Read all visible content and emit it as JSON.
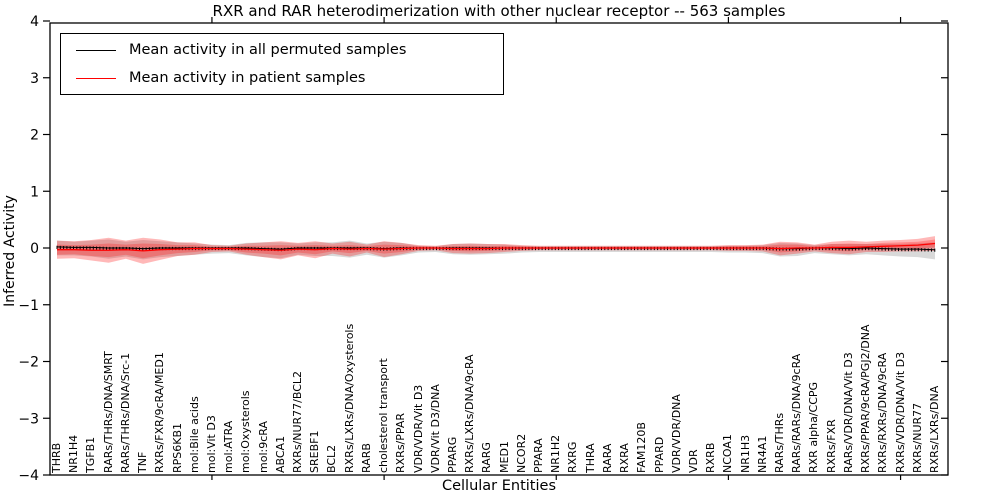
{
  "title": "RXR and RAR heterodimerization with other nuclear receptor -- 563 samples",
  "legend": [
    {
      "label": "Mean activity in all permuted samples",
      "color": "#000000"
    },
    {
      "label": "Mean activity in patient samples",
      "color": "#ff0000"
    }
  ],
  "chart_data": {
    "type": "line",
    "title": "RXR and RAR heterodimerization with other nuclear receptor -- 563 samples",
    "xlabel": "Cellular Entities",
    "ylabel": "Inferred Activity",
    "ylim": [
      -4,
      4
    ],
    "yticks": [
      -4,
      -3,
      -2,
      -1,
      0,
      1,
      2,
      3,
      4
    ],
    "xticks": [
      10,
      20,
      30,
      40,
      50
    ],
    "grid": false,
    "legend_position": "upper left",
    "categories": [
      "THRB",
      "NR1H4",
      "TGFB1",
      "RARs/THRs/DNA/SMRT",
      "RARs/THRs/DNA/Src-1",
      "TNF",
      "RXRs/FXR/9cRA/MED1",
      "RPS6KB1",
      "mol:Bile acids",
      "mol:Vit D3",
      "mol:ATRA",
      "mol:Oxysterols",
      "mol:9cRA",
      "ABCA1",
      "RXRs/NUR77/BCL2",
      "SREBF1",
      "BCL2",
      "RXRs/LXRs/DNA/Oxysterols",
      "RARB",
      "cholesterol transport",
      "RXRs/PPAR",
      "VDR/VDR/Vit D3",
      "VDR/Vit D3/DNA",
      "PPARG",
      "RXRs/LXRs/DNA/9cRA",
      "RARG",
      "MED1",
      "NCOR2",
      "PPARA",
      "NR1H2",
      "RXRG",
      "THRA",
      "RARA",
      "RXRA",
      "FAM120B",
      "PPARD",
      "VDR/VDR/DNA",
      "VDR",
      "RXRB",
      "NCOA1",
      "NR1H3",
      "NR4A1",
      "RARs/THRs",
      "RARs/RARs/DNA/9cRA",
      "RXR alpha/CCPG",
      "RXRs/FXR",
      "RARs/VDR/DNA/Vit D3",
      "RXRs/PPAR/9cRA/PGJ2/DNA",
      "RXRs/RXRs/DNA/9cRA",
      "RXRs/VDR/DNA/Vit D3",
      "RXRs/NUR77",
      "RXRs/LXRs/DNA"
    ],
    "series": [
      {
        "name": "Mean activity in all permuted samples",
        "color": "#000000",
        "values": [
          0.02,
          0.01,
          0.01,
          0.0,
          0.0,
          -0.01,
          0.0,
          0.0,
          0.0,
          0.0,
          0.0,
          0.0,
          -0.01,
          -0.02,
          0.0,
          0.0,
          0.0,
          0.0,
          0.0,
          -0.01,
          0.0,
          0.0,
          0.0,
          0.0,
          0.0,
          0.0,
          0.0,
          0.0,
          0.0,
          0.0,
          0.0,
          0.0,
          0.0,
          0.0,
          0.0,
          0.0,
          0.0,
          0.0,
          0.0,
          0.0,
          0.0,
          0.0,
          -0.01,
          -0.01,
          0.0,
          0.0,
          -0.01,
          0.0,
          -0.01,
          -0.02,
          -0.02,
          -0.03
        ]
      },
      {
        "name": "Mean activity in patient samples",
        "color": "#ff0000",
        "values": [
          -0.03,
          -0.03,
          -0.04,
          -0.04,
          -0.03,
          -0.05,
          -0.03,
          -0.02,
          -0.01,
          -0.01,
          -0.01,
          -0.02,
          -0.03,
          -0.04,
          -0.02,
          -0.03,
          -0.01,
          -0.02,
          -0.01,
          -0.02,
          -0.01,
          0.0,
          0.0,
          -0.01,
          -0.01,
          -0.01,
          0.0,
          0.0,
          0.0,
          0.0,
          0.0,
          0.0,
          0.0,
          0.0,
          0.0,
          0.0,
          0.0,
          0.0,
          0.0,
          0.0,
          0.0,
          0.0,
          -0.01,
          0.0,
          0.0,
          0.01,
          0.01,
          0.02,
          0.03,
          0.04,
          0.05,
          0.08
        ]
      }
    ],
    "bands": [
      {
        "name": "permuted-samples-range",
        "color": "#808080",
        "opacity": 0.3,
        "center_offset": -0.02,
        "half_widths": [
          0.13,
          0.12,
          0.14,
          0.17,
          0.13,
          0.17,
          0.14,
          0.12,
          0.1,
          0.08,
          0.07,
          0.11,
          0.13,
          0.14,
          0.1,
          0.12,
          0.12,
          0.15,
          0.1,
          0.14,
          0.11,
          0.06,
          0.05,
          0.09,
          0.1,
          0.09,
          0.08,
          0.06,
          0.05,
          0.05,
          0.05,
          0.05,
          0.05,
          0.05,
          0.05,
          0.05,
          0.05,
          0.05,
          0.05,
          0.06,
          0.06,
          0.07,
          0.12,
          0.11,
          0.07,
          0.09,
          0.1,
          0.09,
          0.1,
          0.11,
          0.12,
          0.15
        ]
      },
      {
        "name": "patient-samples-range-outer",
        "color": "#ff0000",
        "opacity": 0.28,
        "center_offset": 0,
        "half_widths": [
          0.16,
          0.15,
          0.18,
          0.22,
          0.16,
          0.23,
          0.18,
          0.12,
          0.11,
          0.06,
          0.05,
          0.1,
          0.13,
          0.16,
          0.11,
          0.15,
          0.09,
          0.13,
          0.07,
          0.14,
          0.1,
          0.05,
          0.04,
          0.08,
          0.09,
          0.08,
          0.07,
          0.05,
          0.04,
          0.04,
          0.04,
          0.04,
          0.04,
          0.04,
          0.04,
          0.04,
          0.04,
          0.04,
          0.04,
          0.05,
          0.05,
          0.06,
          0.12,
          0.1,
          0.06,
          0.1,
          0.12,
          0.09,
          0.1,
          0.1,
          0.11,
          0.13
        ]
      },
      {
        "name": "patient-samples-range-inner",
        "color": "#ff0000",
        "opacity": 0.25,
        "center_offset": 0,
        "half_widths": [
          0.09,
          0.08,
          0.1,
          0.12,
          0.09,
          0.13,
          0.1,
          0.07,
          0.06,
          0.03,
          0.03,
          0.06,
          0.07,
          0.09,
          0.06,
          0.08,
          0.05,
          0.07,
          0.04,
          0.08,
          0.06,
          0.03,
          0.02,
          0.04,
          0.05,
          0.04,
          0.04,
          0.03,
          0.02,
          0.02,
          0.02,
          0.02,
          0.02,
          0.02,
          0.02,
          0.02,
          0.02,
          0.02,
          0.02,
          0.03,
          0.03,
          0.03,
          0.07,
          0.06,
          0.03,
          0.06,
          0.07,
          0.05,
          0.06,
          0.06,
          0.06,
          0.07
        ]
      }
    ]
  }
}
